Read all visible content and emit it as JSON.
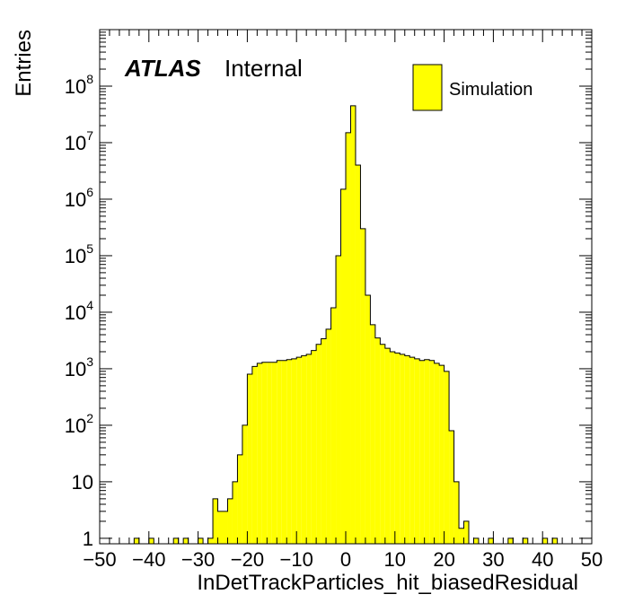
{
  "chart_data": {
    "type": "bar",
    "xlabel": "InDetTrackParticles_hit_biasedResidual",
    "ylabel": "Entries",
    "xlim": [
      -50,
      50
    ],
    "ylim": [
      0.8,
      1000000000.0
    ],
    "yscale": "log",
    "bin_width": 1,
    "x_ticks": [
      -50,
      -40,
      -30,
      -20,
      -10,
      0,
      10,
      20,
      30,
      40,
      50
    ],
    "x_tick_labels": [
      "−50",
      "−40",
      "−30",
      "−20",
      "−10",
      "0",
      "10",
      "20",
      "30",
      "40",
      "50"
    ],
    "y_ticks": [
      {
        "base": "1",
        "exp": ""
      },
      {
        "base": "10",
        "exp": ""
      },
      {
        "base": "10",
        "exp": "2"
      },
      {
        "base": "10",
        "exp": "3"
      },
      {
        "base": "10",
        "exp": "4"
      },
      {
        "base": "10",
        "exp": "5"
      },
      {
        "base": "10",
        "exp": "6"
      },
      {
        "base": "10",
        "exp": "7"
      },
      {
        "base": "10",
        "exp": "8"
      }
    ],
    "label_atlas": "ATLAS",
    "label_status": "Internal",
    "fill_color": "#ffff00",
    "line_color": "#000000",
    "series": [
      {
        "name": "Simulation",
        "bins": [
          [
            -43,
            1
          ],
          [
            -40,
            1
          ],
          [
            -35,
            1
          ],
          [
            -33,
            1
          ],
          [
            -30,
            1
          ],
          [
            -28,
            1
          ],
          [
            -27,
            5
          ],
          [
            -26,
            3
          ],
          [
            -25,
            3
          ],
          [
            -24,
            5
          ],
          [
            -23,
            10
          ],
          [
            -22,
            30
          ],
          [
            -21,
            100
          ],
          [
            -20,
            800
          ],
          [
            -19,
            1100
          ],
          [
            -18,
            1250
          ],
          [
            -17,
            1300
          ],
          [
            -16,
            1300
          ],
          [
            -15,
            1300
          ],
          [
            -14,
            1400
          ],
          [
            -13,
            1400
          ],
          [
            -12,
            1450
          ],
          [
            -11,
            1500
          ],
          [
            -10,
            1600
          ],
          [
            -9,
            1700
          ],
          [
            -8,
            1800
          ],
          [
            -7,
            2100
          ],
          [
            -6,
            2700
          ],
          [
            -5,
            3400
          ],
          [
            -4,
            5000
          ],
          [
            -3,
            12000
          ],
          [
            -2,
            100000
          ],
          [
            -1,
            1500000
          ],
          [
            0,
            15000000
          ],
          [
            1,
            45000000
          ],
          [
            2,
            4000000
          ],
          [
            3,
            300000
          ],
          [
            4,
            20000
          ],
          [
            5,
            6000
          ],
          [
            6,
            3500
          ],
          [
            7,
            2700
          ],
          [
            8,
            2300
          ],
          [
            9,
            2000
          ],
          [
            10,
            1900
          ],
          [
            11,
            1800
          ],
          [
            12,
            1700
          ],
          [
            13,
            1600
          ],
          [
            14,
            1500
          ],
          [
            15,
            1400
          ],
          [
            16,
            1450
          ],
          [
            17,
            1400
          ],
          [
            18,
            1250
          ],
          [
            19,
            1150
          ],
          [
            20,
            900
          ],
          [
            21,
            80
          ],
          [
            22,
            10
          ],
          [
            23,
            1.5
          ],
          [
            24,
            2
          ],
          [
            26,
            1
          ],
          [
            29,
            1
          ],
          [
            33,
            1
          ],
          [
            36,
            1
          ],
          [
            40,
            1
          ],
          [
            42,
            1
          ]
        ]
      }
    ]
  }
}
